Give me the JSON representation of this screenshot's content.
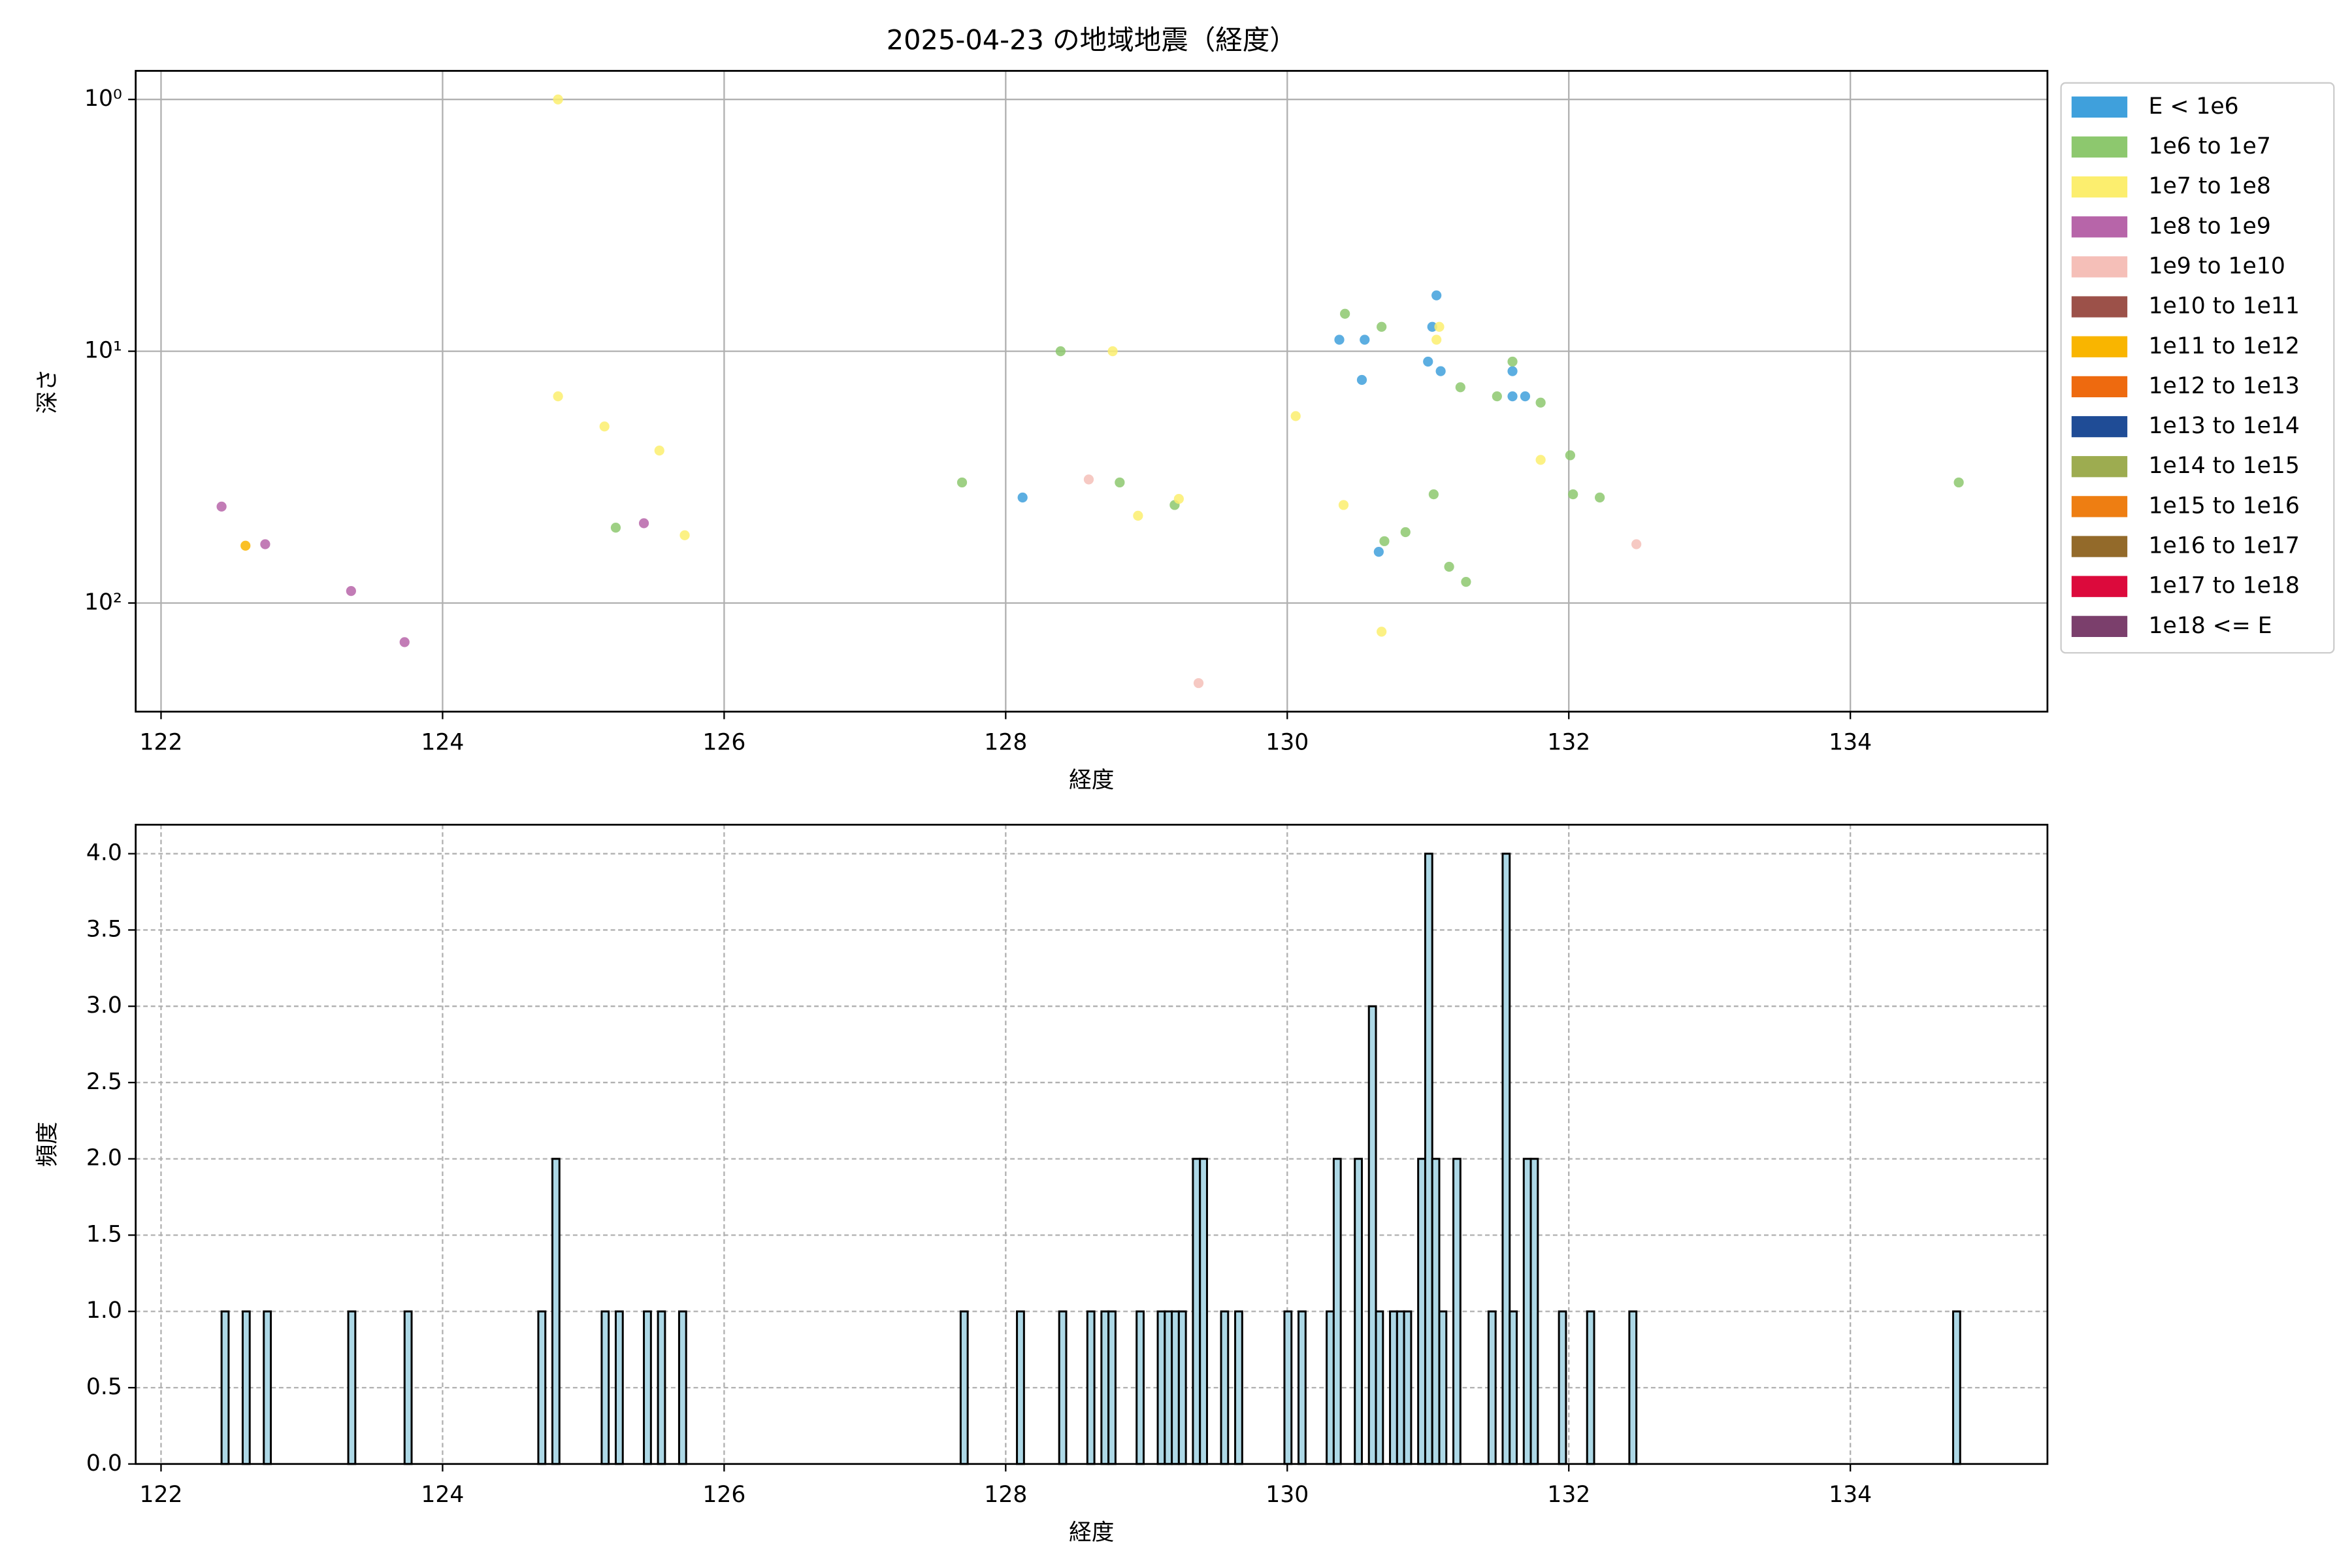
{
  "chart_data": [
    {
      "type": "scatter",
      "title": "2025-04-23 の地域地震（経度）",
      "x_label": "経度",
      "y_label": "深さ",
      "y_scale": "log",
      "grid": true,
      "legend": "outside right",
      "xlim": [
        121.82,
        135.4
      ],
      "xticks": [
        122,
        124,
        126,
        128,
        130,
        132,
        134
      ],
      "ylim": [
        270,
        0.77
      ],
      "yticks": [
        {
          "value": 1,
          "label": "10⁰"
        },
        {
          "value": 10,
          "label": "10¹"
        },
        {
          "value": 100,
          "label": "10²"
        }
      ],
      "series": [
        {
          "name": "E < 1e6",
          "color": "#3fa0dc",
          "x": [
            128.12,
            130.37,
            130.55,
            130.53,
            130.65,
            131.03,
            131.06,
            131.0,
            131.09,
            131.6,
            131.6,
            131.69
          ],
          "y": [
            38.1,
            9.0,
            9.0,
            13.0,
            62.6,
            8.0,
            6.0,
            11.0,
            12.0,
            12.0,
            15.1,
            15.1
          ]
        },
        {
          "name": "1e6 to 1e7",
          "color": "#8dc86e",
          "x": [
            125.23,
            127.69,
            128.39,
            128.81,
            129.2,
            130.41,
            130.67,
            130.69,
            130.84,
            131.04,
            131.15,
            131.27,
            131.23,
            131.49,
            131.6,
            131.8,
            132.01,
            132.03,
            132.22,
            134.77
          ],
          "y": [
            50.2,
            33.2,
            10,
            33.2,
            40.8,
            7.1,
            8.0,
            56.8,
            52.3,
            37.0,
            71.8,
            82.4,
            13.9,
            15.1,
            11.0,
            16.0,
            25.9,
            37.0,
            38.1,
            33.2
          ]
        },
        {
          "name": "1e7 to 1e8",
          "color": "#fcee6e",
          "x": [
            124.82,
            124.82,
            125.15,
            125.54,
            125.72,
            128.76,
            128.94,
            129.23,
            130.06,
            130.4,
            131.08,
            131.06,
            130.67,
            131.8
          ],
          "y": [
            1.0,
            15.1,
            19.9,
            24.8,
            53.8,
            10,
            45,
            38.6,
            18.1,
            40.8,
            8.0,
            9.0,
            130,
            27
          ]
        },
        {
          "name": "1e8 to 1e9",
          "color": "#b765a9",
          "x": [
            122.43,
            122.74,
            123.35,
            123.73,
            125.43
          ],
          "y": [
            41.4,
            58.4,
            89.6,
            143,
            48.2
          ]
        },
        {
          "name": "1e9 to 1e10",
          "color": "#f5bfb8",
          "x": [
            128.59,
            129.37,
            132.48
          ],
          "y": [
            32.3,
            208,
            58.4
          ]
        },
        {
          "name": "1e10 to 1e11",
          "color": "#9c5149",
          "x": [],
          "y": []
        },
        {
          "name": "1e11 to 1e12",
          "color": "#f9b500",
          "x": [
            122.6
          ],
          "y": [
            59.2
          ]
        },
        {
          "name": "1e12 to 1e13",
          "color": "#ee6a0f",
          "x": [],
          "y": []
        },
        {
          "name": "1e13 to 1e14",
          "color": "#1f4c96",
          "x": [],
          "y": []
        },
        {
          "name": "1e14 to 1e15",
          "color": "#9dac50",
          "x": [],
          "y": []
        },
        {
          "name": "1e15 to 1e16",
          "color": "#ee7e12",
          "x": [],
          "y": []
        },
        {
          "name": "1e16 to 1e17",
          "color": "#936a2a",
          "x": [],
          "y": []
        },
        {
          "name": "1e17 to 1e18",
          "color": "#dc0a3c",
          "x": [],
          "y": []
        },
        {
          "name": "1e18 <= E",
          "color": "#7b3f6c",
          "x": [],
          "y": []
        }
      ]
    },
    {
      "type": "histogram",
      "x_label": "経度",
      "y_label": "頻度",
      "grid": true,
      "color": "#add8e6",
      "xlim": [
        121.82,
        135.4
      ],
      "xticks": [
        122,
        124,
        126,
        128,
        130,
        132,
        134
      ],
      "ylim": [
        0,
        4.19
      ],
      "yticks": [
        {
          "value": 0,
          "label": "0.0"
        },
        {
          "value": 0.5,
          "label": "0.5"
        },
        {
          "value": 1,
          "label": "1.0"
        },
        {
          "value": 1.5,
          "label": "1.5"
        },
        {
          "value": 2,
          "label": "2.0"
        },
        {
          "value": 2.5,
          "label": "2.5"
        },
        {
          "value": 3,
          "label": "3.0"
        },
        {
          "value": 3.5,
          "label": "3.5"
        },
        {
          "value": 4,
          "label": "4.0"
        }
      ],
      "bins": [
        122.43,
        122.48,
        122.58,
        122.63,
        122.73,
        122.78,
        123.33,
        123.38,
        123.73,
        123.78,
        124.68,
        124.73,
        124.78,
        124.83,
        125.13,
        125.18,
        125.23,
        125.28,
        125.43,
        125.48,
        125.53,
        125.58,
        125.68,
        125.73,
        127.68,
        127.73,
        128.08,
        128.13,
        128.38,
        128.43,
        128.58,
        128.63,
        128.68,
        128.73,
        128.78,
        128.93,
        128.98,
        129.08,
        129.13,
        129.18,
        129.23,
        129.28,
        129.33,
        129.38,
        129.43,
        129.53,
        129.58,
        129.63,
        129.68,
        129.98,
        130.03,
        130.08,
        130.13,
        130.28,
        130.33,
        130.38,
        130.48,
        130.53,
        130.58,
        130.63,
        130.68,
        130.73,
        130.78,
        130.83,
        130.88,
        130.93,
        130.98,
        131.03,
        131.08,
        131.13,
        131.18,
        131.23,
        131.43,
        131.48,
        131.53,
        131.58,
        131.63,
        131.68,
        131.73,
        131.78,
        131.93,
        131.98,
        132.13,
        132.18,
        132.43,
        132.48,
        134.73,
        134.78
      ],
      "values": [
        1,
        0,
        1,
        0,
        1,
        0,
        1,
        0,
        1,
        0,
        1,
        0,
        2,
        0,
        1,
        0,
        1,
        0,
        1,
        0,
        1,
        0,
        1,
        0,
        1,
        0,
        1,
        0,
        1,
        0,
        1,
        0,
        1,
        1,
        0,
        1,
        0,
        1,
        1,
        1,
        1,
        0,
        2,
        2,
        0,
        1,
        0,
        1,
        0,
        1,
        0,
        1,
        0,
        1,
        2,
        0,
        2,
        0,
        3,
        1,
        0,
        1,
        1,
        1,
        0,
        2,
        4,
        2,
        1,
        0,
        2,
        0,
        1,
        0,
        4,
        1,
        0,
        2,
        2,
        0,
        1,
        0,
        1,
        0,
        1,
        0,
        1
      ]
    }
  ]
}
